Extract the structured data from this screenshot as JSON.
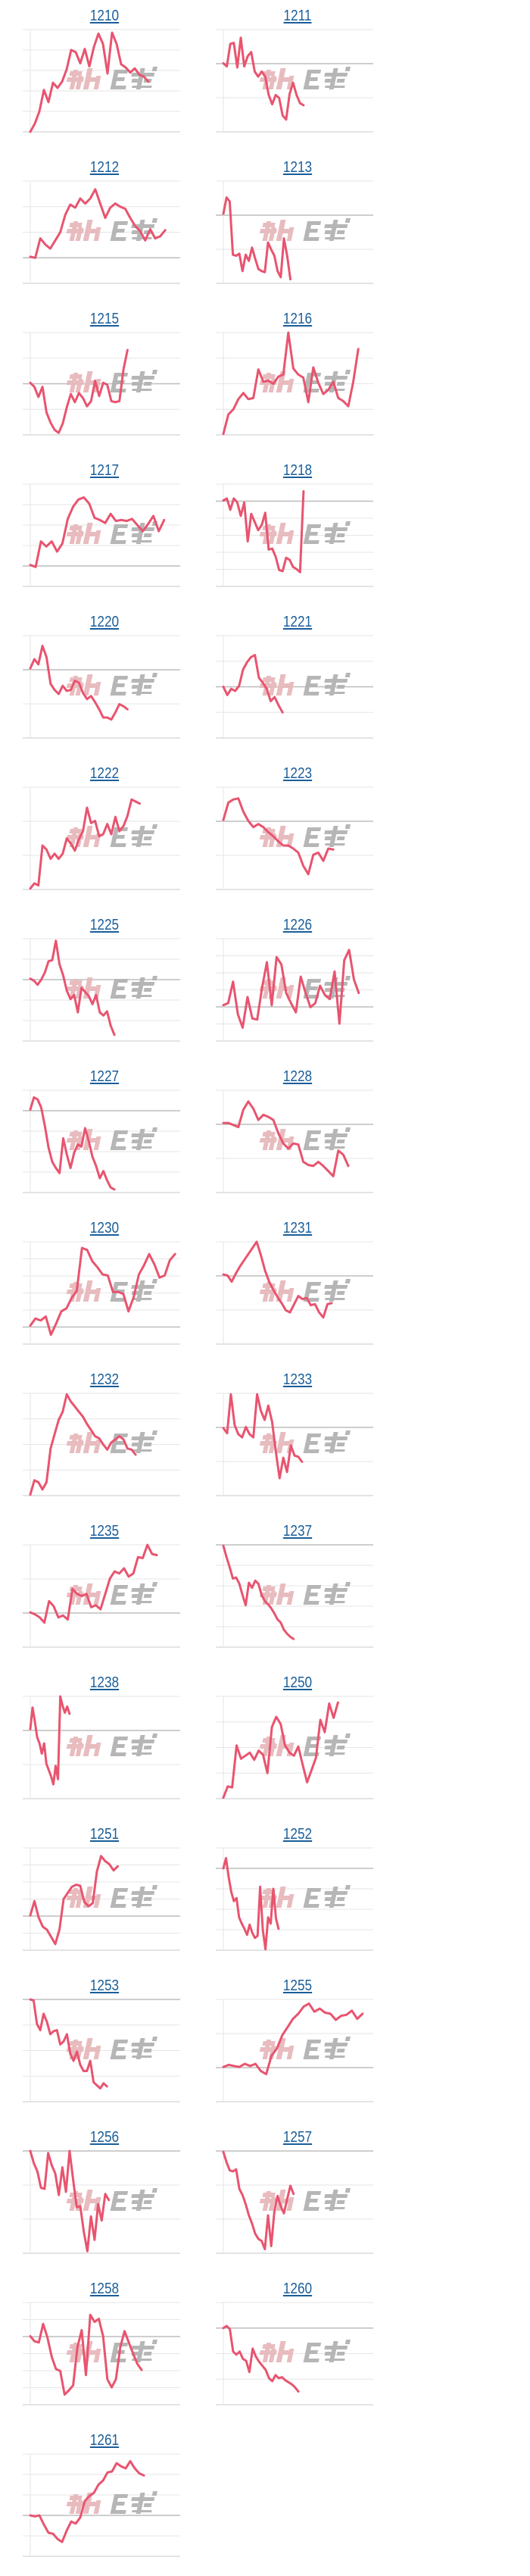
{
  "watermark": {
    "text": "みんかぶ",
    "colors": {
      "pink": "#e7b9bc",
      "gray": "#b3b3b3"
    }
  },
  "colors": {
    "line": "#e8546f",
    "title": "#1a5e9a",
    "grid": "#e6e6e6",
    "grid_ref": "#bdbdbd"
  },
  "chart_data": [
    {
      "type": "line",
      "code": "1210",
      "xlim": [
        0,
        33
      ],
      "ylim": [
        0,
        100
      ],
      "grid_divisions": 5,
      "ref_line": null,
      "values": [
        0,
        8,
        20,
        41,
        29,
        48,
        43,
        49,
        61,
        80,
        78,
        67,
        81,
        64,
        83,
        96,
        86,
        57,
        97,
        86,
        66,
        63,
        58,
        62,
        56,
        54,
        49
      ]
    },
    {
      "type": "line",
      "code": "1211",
      "xlim": [
        0,
        43
      ],
      "ylim": [
        0,
        100
      ],
      "grid_divisions": 3,
      "ref_line": 2,
      "values": [
        67,
        64,
        86,
        87,
        63,
        92,
        64,
        74,
        78,
        59,
        54,
        59,
        54,
        36,
        27,
        36,
        33,
        16,
        12,
        37,
        48,
        36,
        28,
        26
      ]
    },
    {
      "type": "line",
      "code": "1212",
      "xlim": [
        0,
        30
      ],
      "ylim": [
        0,
        100
      ],
      "grid_divisions": 4,
      "ref_line": 1,
      "values": [
        26,
        25,
        44,
        38,
        34,
        42,
        50,
        67,
        77,
        74,
        83,
        78,
        83,
        92,
        78,
        64,
        74,
        78,
        75,
        73,
        64,
        56,
        51,
        42,
        53,
        44,
        46,
        52
      ]
    },
    {
      "type": "line",
      "code": "1213",
      "xlim": [
        0,
        47
      ],
      "ylim": [
        0,
        100
      ],
      "grid_divisions": 3,
      "ref_line": 2,
      "values": [
        68,
        84,
        80,
        28,
        27,
        29,
        12,
        28,
        22,
        35,
        24,
        14,
        12,
        11,
        40,
        33,
        27,
        12,
        6,
        44,
        27,
        4
      ]
    },
    {
      "type": "line",
      "code": "1215",
      "xlim": [
        0,
        37
      ],
      "ylim": [
        0,
        100
      ],
      "grid_divisions": 4,
      "ref_line": 2,
      "values": [
        51,
        47,
        37,
        47,
        22,
        12,
        5,
        2,
        11,
        27,
        40,
        32,
        41,
        36,
        28,
        33,
        53,
        38,
        51,
        49,
        33,
        32,
        33,
        64,
        83
      ]
    },
    {
      "type": "line",
      "code": "1216",
      "xlim": [
        0,
        30
      ],
      "ylim": [
        0,
        100
      ],
      "grid_divisions": 4,
      "ref_line": null,
      "values": [
        1,
        20,
        25,
        35,
        41,
        35,
        36,
        64,
        52,
        53,
        50,
        57,
        59,
        100,
        65,
        59,
        56,
        32,
        66,
        51,
        40,
        44,
        52,
        36,
        33,
        28,
        52,
        84
      ]
    },
    {
      "type": "line",
      "code": "1217",
      "xlim": [
        0,
        28
      ],
      "ylim": [
        0,
        100
      ],
      "grid_divisions": 5,
      "ref_line": 1,
      "values": [
        21,
        19,
        44,
        39,
        44,
        34,
        42,
        66,
        78,
        85,
        87,
        81,
        67,
        65,
        62,
        71,
        64,
        65,
        64,
        66,
        60,
        54,
        61,
        69,
        54,
        65
      ]
    },
    {
      "type": "line",
      "code": "1218",
      "xlim": [
        0,
        43
      ],
      "ylim": [
        0,
        100
      ],
      "grid_divisions": 6,
      "ref_line": 5,
      "values": [
        84,
        86,
        75,
        86,
        82,
        69,
        82,
        44,
        71,
        63,
        55,
        60,
        72,
        36,
        37,
        29,
        16,
        15,
        28,
        26,
        19,
        17,
        14,
        93
      ]
    },
    {
      "type": "line",
      "code": "1220",
      "xlim": [
        0,
        37
      ],
      "ylim": [
        0,
        100
      ],
      "grid_divisions": 3,
      "ref_line": 2,
      "values": [
        68,
        77,
        72,
        90,
        79,
        53,
        47,
        43,
        51,
        46,
        47,
        56,
        54,
        44,
        38,
        41,
        35,
        28,
        20,
        20,
        18,
        25,
        33,
        31,
        28
      ]
    },
    {
      "type": "line",
      "code": "1221",
      "xlim": [
        0,
        38
      ],
      "ylim": [
        0,
        100
      ],
      "grid_divisions": 4,
      "ref_line": 2,
      "values": [
        50,
        42,
        48,
        46,
        51,
        67,
        74,
        79,
        81,
        59,
        54,
        48,
        36,
        40,
        32,
        25
      ]
    },
    {
      "type": "line",
      "code": "1222",
      "xlim": [
        0,
        37
      ],
      "ylim": [
        0,
        100
      ],
      "grid_divisions": 3,
      "ref_line": null,
      "values": [
        1,
        6,
        4,
        43,
        39,
        30,
        35,
        30,
        35,
        50,
        45,
        38,
        49,
        57,
        80,
        65,
        67,
        52,
        54,
        64,
        54,
        71,
        57,
        62,
        72,
        88,
        86,
        84
      ]
    },
    {
      "type": "line",
      "code": "1223",
      "xlim": [
        0,
        30
      ],
      "ylim": [
        0,
        100
      ],
      "grid_divisions": 3,
      "ref_line": 2,
      "values": [
        68,
        85,
        88,
        89,
        76,
        67,
        61,
        64,
        61,
        56,
        52,
        47,
        43,
        43,
        40,
        36,
        23,
        15,
        34,
        36,
        28,
        40,
        39
      ]
    },
    {
      "type": "line",
      "code": "1225",
      "xlim": [
        0,
        41
      ],
      "ylim": [
        0,
        100
      ],
      "grid_divisions": 5,
      "ref_line": 3,
      "values": [
        61,
        59,
        55,
        60,
        67,
        78,
        79,
        98,
        75,
        64,
        49,
        41,
        45,
        28,
        52,
        48,
        44,
        36,
        45,
        28,
        25,
        29,
        15,
        6
      ]
    },
    {
      "type": "line",
      "code": "1226",
      "xlim": [
        0,
        31
      ],
      "ylim": [
        0,
        100
      ],
      "grid_divisions": 6,
      "ref_line": 2,
      "values": [
        35,
        37,
        58,
        26,
        13,
        43,
        22,
        21,
        52,
        77,
        35,
        82,
        75,
        47,
        37,
        28,
        63,
        47,
        33,
        37,
        54,
        45,
        41,
        68,
        17,
        79,
        89,
        60,
        47
      ]
    },
    {
      "type": "line",
      "code": "1227",
      "xlim": [
        0,
        41
      ],
      "ylim": [
        0,
        100
      ],
      "grid_divisions": 5,
      "ref_line": 4,
      "values": [
        81,
        93,
        91,
        83,
        65,
        44,
        30,
        24,
        19,
        53,
        37,
        24,
        39,
        47,
        45,
        63,
        50,
        35,
        26,
        14,
        21,
        12,
        5,
        3
      ]
    },
    {
      "type": "line",
      "code": "1228",
      "xlim": [
        0,
        30
      ],
      "ylim": [
        0,
        100
      ],
      "grid_divisions": 3,
      "ref_line": 2,
      "values": [
        68,
        68,
        66,
        64,
        81,
        89,
        82,
        71,
        76,
        74,
        71,
        58,
        48,
        43,
        48,
        47,
        30,
        27,
        26,
        30,
        26,
        21,
        16,
        41,
        37,
        26
      ]
    },
    {
      "type": "line",
      "code": "1230",
      "xlim": [
        0,
        29
      ],
      "ylim": [
        0,
        100
      ],
      "grid_divisions": 6,
      "ref_line": 1,
      "values": [
        18,
        25,
        23,
        27,
        9,
        20,
        32,
        35,
        45,
        52,
        94,
        92,
        81,
        75,
        68,
        67,
        51,
        51,
        49,
        32,
        46,
        68,
        77,
        88,
        78,
        65,
        67,
        82,
        88
      ]
    },
    {
      "type": "line",
      "code": "1231",
      "xlim": [
        0,
        36
      ],
      "ylim": [
        0,
        100
      ],
      "grid_divisions": 3,
      "ref_line": 2,
      "values": [
        68,
        67,
        61,
        69,
        76,
        82,
        88,
        94,
        100,
        87,
        72,
        61,
        53,
        46,
        40,
        33,
        31,
        39,
        47,
        44,
        45,
        38,
        39,
        31,
        26,
        39,
        40
      ]
    },
    {
      "type": "line",
      "code": "1232",
      "xlim": [
        0,
        37
      ],
      "ylim": [
        0,
        100
      ],
      "grid_divisions": 4,
      "ref_line": null,
      "values": [
        1,
        15,
        13,
        6,
        13,
        46,
        60,
        74,
        82,
        99,
        92,
        87,
        82,
        77,
        70,
        64,
        58,
        56,
        50,
        45,
        52,
        55,
        58,
        55,
        46,
        45,
        40
      ]
    },
    {
      "type": "line",
      "code": "1233",
      "xlim": [
        0,
        40
      ],
      "ylim": [
        0,
        100
      ],
      "grid_divisions": 3,
      "ref_line": 2,
      "values": [
        66,
        61,
        99,
        69,
        60,
        57,
        67,
        60,
        57,
        99,
        83,
        74,
        88,
        72,
        43,
        17,
        37,
        23,
        49,
        39,
        38,
        33
      ]
    },
    {
      "type": "line",
      "code": "1235",
      "xlim": [
        0,
        32
      ],
      "ylim": [
        0,
        100
      ],
      "grid_divisions": 3,
      "ref_line": 1,
      "values": [
        34,
        32,
        29,
        24,
        45,
        40,
        29,
        31,
        27,
        57,
        52,
        50,
        52,
        39,
        41,
        37,
        52,
        67,
        74,
        72,
        77,
        69,
        72,
        88,
        87,
        100,
        91,
        90
      ]
    },
    {
      "type": "line",
      "code": "1237",
      "xlim": [
        0,
        47
      ],
      "ylim": [
        0,
        100
      ],
      "grid_divisions": 5,
      "ref_line": 5,
      "values": [
        99,
        88,
        78,
        67,
        68,
        62,
        51,
        41,
        63,
        58,
        65,
        62,
        51,
        45,
        42,
        38,
        33,
        27,
        24,
        17,
        13,
        10,
        8
      ]
    },
    {
      "type": "line",
      "code": "1238",
      "xlim": [
        0,
        65
      ],
      "ylim": [
        0,
        100
      ],
      "grid_divisions": 3,
      "ref_line": 2,
      "values": [
        68,
        89,
        75,
        60,
        54,
        44,
        54,
        34,
        28,
        22,
        14,
        32,
        19,
        100,
        91,
        84,
        90,
        83
      ]
    },
    {
      "type": "line",
      "code": "1250",
      "xlim": [
        0,
        34
      ],
      "ylim": [
        0,
        100
      ],
      "grid_divisions": 4,
      "ref_line": null,
      "values": [
        1,
        12,
        11,
        52,
        39,
        42,
        45,
        38,
        47,
        43,
        25,
        70,
        80,
        73,
        52,
        45,
        42,
        51,
        33,
        16,
        28,
        40,
        77,
        65,
        93,
        79,
        94
      ]
    },
    {
      "type": "line",
      "code": "1251",
      "xlim": [
        0,
        36
      ],
      "ylim": [
        0,
        100
      ],
      "grid_divisions": 6,
      "ref_line": 2,
      "values": [
        34,
        48,
        32,
        23,
        20,
        13,
        6,
        20,
        50,
        56,
        62,
        64,
        63,
        47,
        43,
        46,
        77,
        92,
        87,
        84,
        78,
        82
      ]
    },
    {
      "type": "line",
      "code": "1252",
      "xlim": [
        0,
        57
      ],
      "ylim": [
        0,
        100
      ],
      "grid_divisions": 5,
      "ref_line": 4,
      "values": [
        80,
        90,
        72,
        57,
        48,
        51,
        32,
        26,
        21,
        15,
        25,
        17,
        12,
        14,
        62,
        20,
        1,
        32,
        26,
        60,
        31,
        21
      ]
    },
    {
      "type": "line",
      "code": "1253",
      "xlim": [
        0,
        45
      ],
      "ylim": [
        0,
        100
      ],
      "grid_divisions": 4,
      "ref_line": 4,
      "values": [
        100,
        99,
        76,
        70,
        86,
        78,
        66,
        69,
        70,
        56,
        59,
        66,
        47,
        40,
        49,
        36,
        30,
        30,
        40,
        19,
        16,
        13,
        18,
        15
      ]
    },
    {
      "type": "line",
      "code": "1255",
      "xlim": [
        0,
        28
      ],
      "ylim": [
        0,
        100
      ],
      "grid_divisions": 3,
      "ref_line": 1,
      "values": [
        34,
        36,
        35,
        34,
        37,
        35,
        37,
        30,
        27,
        45,
        52,
        65,
        73,
        81,
        86,
        93,
        96,
        88,
        91,
        87,
        86,
        80,
        84,
        85,
        89,
        81,
        86
      ]
    },
    {
      "type": "line",
      "code": "1256",
      "xlim": [
        0,
        42
      ],
      "ylim": [
        0,
        100
      ],
      "grid_divisions": 3,
      "ref_line": 3,
      "values": [
        100,
        88,
        80,
        64,
        63,
        98,
        86,
        78,
        57,
        84,
        60,
        100,
        72,
        45,
        46,
        21,
        2,
        36,
        13,
        48,
        32,
        58,
        52
      ]
    },
    {
      "type": "line",
      "code": "1257",
      "xlim": [
        0,
        47
      ],
      "ylim": [
        0,
        100
      ],
      "grid_divisions": 3,
      "ref_line": 3,
      "values": [
        99,
        89,
        81,
        80,
        82,
        63,
        57,
        48,
        37,
        29,
        19,
        14,
        12,
        4,
        37,
        7,
        41,
        56,
        46,
        39,
        53,
        66,
        58
      ]
    },
    {
      "type": "line",
      "code": "1258",
      "xlim": [
        0,
        35
      ],
      "ylim": [
        0,
        100
      ],
      "grid_divisions": 6,
      "ref_line": 4,
      "values": [
        67,
        62,
        61,
        79,
        66,
        47,
        35,
        33,
        10,
        14,
        19,
        56,
        73,
        29,
        88,
        81,
        84,
        67,
        25,
        17,
        25,
        56,
        72,
        61,
        50,
        40,
        34
      ]
    },
    {
      "type": "line",
      "code": "1260",
      "xlim": [
        0,
        46
      ],
      "ylim": [
        0,
        100
      ],
      "grid_divisions": 4,
      "ref_line": 3,
      "values": [
        75,
        77,
        74,
        52,
        49,
        52,
        45,
        43,
        32,
        55,
        47,
        42,
        38,
        34,
        26,
        23,
        29,
        26,
        27,
        24,
        22,
        20,
        17,
        13
      ]
    },
    {
      "type": "line",
      "code": "1261",
      "xlim": [
        0,
        33
      ],
      "ylim": [
        0,
        100
      ],
      "grid_divisions": 5,
      "ref_line": 2,
      "values": [
        40,
        39,
        40,
        31,
        23,
        22,
        17,
        14,
        25,
        34,
        32,
        38,
        54,
        59,
        62,
        70,
        74,
        82,
        83,
        91,
        88,
        86,
        93,
        86,
        81,
        79
      ]
    }
  ]
}
